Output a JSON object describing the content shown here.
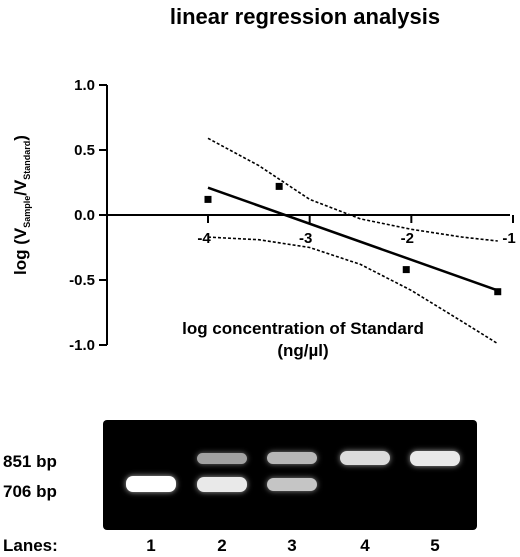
{
  "chart_data": {
    "type": "scatter",
    "title": "linear regression analysis",
    "xlabel_line1": "log concentration of  Standard",
    "xlabel_line2": "(ng/µl)",
    "ylabel": {
      "prefix": "log (V",
      "sub1": "Sample",
      "mid": "/V",
      "sub2": "Standard",
      "suffix": ")"
    },
    "xlim": [
      -5.0,
      -1.0
    ],
    "ylim": [
      -1.0,
      1.0
    ],
    "xticks": [
      -4,
      -3,
      -2,
      -1
    ],
    "xtick_labels": [
      "-4",
      "-3",
      "-2",
      "-1"
    ],
    "yticks": [
      1.0,
      0.5,
      0.0,
      -0.5,
      -1.0
    ],
    "ytick_labels": [
      "1.0",
      "0.5",
      "0.0",
      "-0.5",
      "-1.0"
    ],
    "points": [
      {
        "x": -4.0,
        "y": 0.12
      },
      {
        "x": -3.3,
        "y": 0.22
      },
      {
        "x": -2.05,
        "y": -0.42
      },
      {
        "x": -1.15,
        "y": -0.59
      }
    ],
    "fit_line": {
      "x": [
        -4.0,
        -1.15
      ],
      "y": [
        0.21,
        -0.58
      ]
    },
    "confidence_upper": {
      "x": [
        -4.0,
        -3.5,
        -3.0,
        -2.5,
        -2.0,
        -1.5,
        -1.15
      ],
      "y": [
        0.59,
        0.38,
        0.12,
        -0.03,
        -0.11,
        -0.17,
        -0.2
      ]
    },
    "confidence_lower": {
      "x": [
        -4.0,
        -3.5,
        -3.0,
        -2.5,
        -2.0,
        -1.5,
        -1.15
      ],
      "y": [
        -0.17,
        -0.19,
        -0.25,
        -0.38,
        -0.58,
        -0.82,
        -0.99
      ]
    },
    "grid": false
  },
  "gel": {
    "size_labels": [
      "851 bp",
      "706 bp"
    ],
    "lanes_label": "Lanes:",
    "lanes": [
      {
        "number": "1",
        "upper_band": 0.0,
        "lower_band": 1.0
      },
      {
        "number": "2",
        "upper_band": 0.35,
        "lower_band": 0.85
      },
      {
        "number": "3",
        "upper_band": 0.5,
        "lower_band": 0.6
      },
      {
        "number": "4",
        "upper_band": 0.75,
        "lower_band": 0.0
      },
      {
        "number": "5",
        "upper_band": 0.85,
        "lower_band": 0.0
      }
    ]
  }
}
